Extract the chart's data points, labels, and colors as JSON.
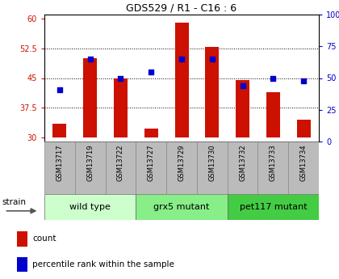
{
  "title": "GDS529 / R1 - C16 : 6",
  "samples": [
    "GSM13717",
    "GSM13719",
    "GSM13722",
    "GSM13727",
    "GSM13729",
    "GSM13730",
    "GSM13732",
    "GSM13733",
    "GSM13734"
  ],
  "count_values": [
    33.5,
    50.0,
    44.8,
    32.2,
    59.0,
    52.8,
    44.5,
    41.5,
    34.5
  ],
  "percentile_values": [
    41,
    65,
    50,
    55,
    65,
    65,
    44,
    50,
    48
  ],
  "ylim_left": [
    29,
    61
  ],
  "ylim_right": [
    0,
    100
  ],
  "yticks_left": [
    30,
    37.5,
    45,
    52.5,
    60
  ],
  "yticks_right": [
    0,
    25,
    50,
    75,
    100
  ],
  "ytick_labels_left": [
    "30",
    "37.5",
    "45",
    "52.5",
    "60"
  ],
  "ytick_labels_right": [
    "0",
    "25",
    "50",
    "75",
    "100%"
  ],
  "bar_color": "#cc1100",
  "dot_color": "#0000cc",
  "bar_bottom": 30,
  "groups": [
    {
      "label": "wild type",
      "start": 0,
      "end": 2,
      "color": "#ccffcc"
    },
    {
      "label": "grx5 mutant",
      "start": 3,
      "end": 5,
      "color": "#88ee88"
    },
    {
      "label": "pet117 mutant",
      "start": 6,
      "end": 8,
      "color": "#44cc44"
    }
  ],
  "strain_label": "strain",
  "legend_count_label": "count",
  "legend_percentile_label": "percentile rank within the sample",
  "grid_color": "#000000",
  "bg_color": "#ffffff",
  "xlabel_area_color": "#bbbbbb",
  "tick_label_color_left": "#cc1100",
  "tick_label_color_right": "#0000cc"
}
